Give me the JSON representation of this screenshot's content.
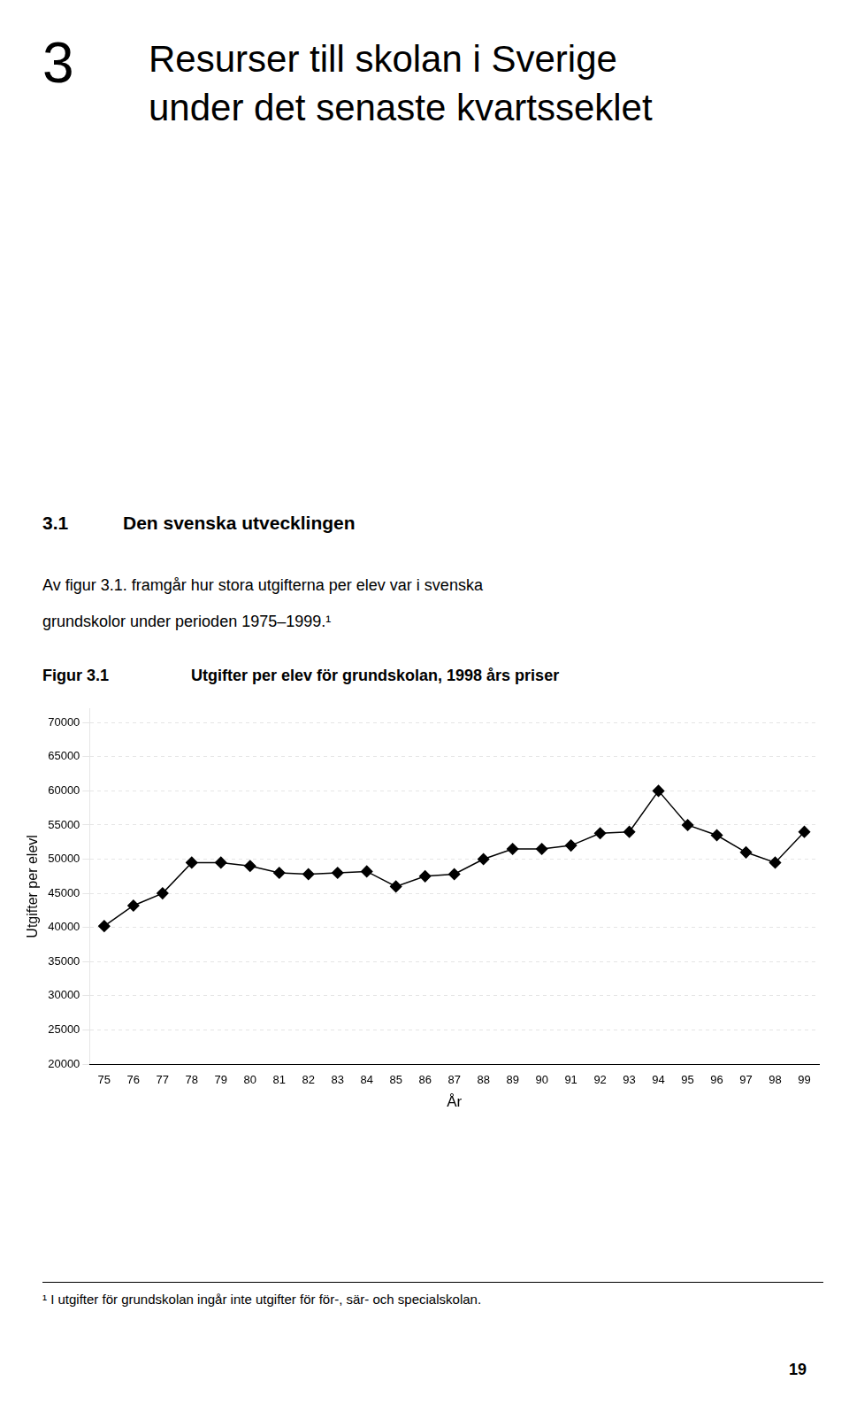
{
  "chart_data": {
    "type": "line",
    "title": "Utgifter per elev för grundskolan, 1998 års priser",
    "x_label": "År",
    "y_label": "Utgifter per elevl",
    "annotations": [
      "3",
      "Resurser till skolan i Sverige",
      "under det senaste kvartsseklet",
      "3.1",
      "Den svenska utvecklingen",
      "Av figur 3.1. framgår hur stora utgifterna per elev var i svenska",
      "grundskolor under perioden 1975–1999.¹",
      "Figur 3.1",
      "¹ I utgifter för grundskolan ingår inte utgifter för för-, sär- och specialskolan.",
      "19"
    ],
    "x": [
      75,
      76,
      77,
      78,
      79,
      80,
      81,
      82,
      83,
      84,
      85,
      86,
      87,
      88,
      89,
      90,
      91,
      92,
      93,
      94,
      95,
      96,
      97,
      98,
      99
    ],
    "values": [
      40200,
      43200,
      45000,
      49500,
      49500,
      49000,
      48000,
      47800,
      48000,
      48200,
      46000,
      47500,
      47800,
      50000,
      51500,
      51500,
      52000,
      53800,
      54000,
      60000,
      55000,
      53500,
      51000,
      49500,
      54000
    ],
    "color": "#000000",
    "marker": "diamond",
    "line_style": "solid",
    "xlim": [
      74.5,
      99.5
    ],
    "xticks": [
      75,
      76,
      77,
      78,
      79,
      80,
      81,
      82,
      83,
      84,
      85,
      86,
      87,
      88,
      89,
      90,
      91,
      92,
      93,
      94,
      95,
      96,
      97,
      98,
      99
    ],
    "ylim": [
      20000,
      72000
    ],
    "yticks": [
      20000,
      25000,
      30000,
      35000,
      40000,
      45000,
      50000,
      55000,
      60000,
      65000,
      70000
    ],
    "grid": true
  }
}
